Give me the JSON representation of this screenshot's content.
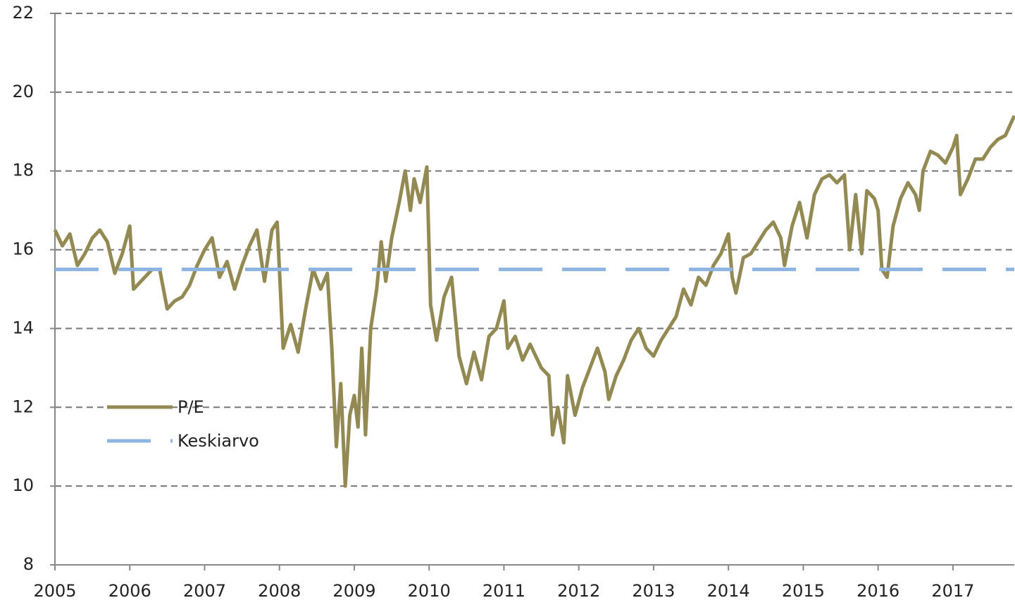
{
  "chart_data": {
    "type": "line",
    "xlim": [
      2005,
      2017.82
    ],
    "xticks": [
      2005,
      2006,
      2007,
      2008,
      2009,
      2010,
      2011,
      2012,
      2013,
      2014,
      2015,
      2016,
      2017
    ],
    "ylim": [
      8,
      22
    ],
    "yticks": [
      8,
      10,
      12,
      14,
      16,
      18,
      20,
      22
    ],
    "grid": true,
    "x": [
      2005.0,
      2005.1,
      2005.2,
      2005.3,
      2005.4,
      2005.5,
      2005.6,
      2005.7,
      2005.8,
      2005.9,
      2006.0,
      2006.05,
      2006.2,
      2006.3,
      2006.4,
      2006.5,
      2006.6,
      2006.7,
      2006.8,
      2006.9,
      2007.0,
      2007.1,
      2007.2,
      2007.3,
      2007.4,
      2007.5,
      2007.6,
      2007.7,
      2007.8,
      2007.9,
      2007.97,
      2008.05,
      2008.15,
      2008.25,
      2008.35,
      2008.45,
      2008.55,
      2008.64,
      2008.7,
      2008.76,
      2008.82,
      2008.88,
      2008.94,
      2009.0,
      2009.05,
      2009.1,
      2009.15,
      2009.22,
      2009.3,
      2009.36,
      2009.42,
      2009.5,
      2009.6,
      2009.68,
      2009.75,
      2009.8,
      2009.88,
      2009.97,
      2010.02,
      2010.1,
      2010.2,
      2010.3,
      2010.4,
      2010.5,
      2010.6,
      2010.7,
      2010.8,
      2010.9,
      2011.0,
      2011.05,
      2011.15,
      2011.25,
      2011.35,
      2011.5,
      2011.6,
      2011.65,
      2011.72,
      2011.8,
      2011.85,
      2011.95,
      2012.05,
      2012.15,
      2012.25,
      2012.35,
      2012.4,
      2012.5,
      2012.6,
      2012.7,
      2012.8,
      2012.9,
      2013.0,
      2013.1,
      2013.2,
      2013.3,
      2013.4,
      2013.5,
      2013.6,
      2013.7,
      2013.8,
      2013.9,
      2014.0,
      2014.05,
      2014.1,
      2014.2,
      2014.3,
      2014.4,
      2014.5,
      2014.6,
      2014.7,
      2014.75,
      2014.85,
      2014.95,
      2015.05,
      2015.15,
      2015.25,
      2015.35,
      2015.45,
      2015.55,
      2015.62,
      2015.7,
      2015.78,
      2015.85,
      2015.95,
      2016.0,
      2016.05,
      2016.12,
      2016.2,
      2016.3,
      2016.4,
      2016.5,
      2016.55,
      2016.6,
      2016.7,
      2016.8,
      2016.9,
      2017.0,
      2017.05,
      2017.1,
      2017.2,
      2017.3,
      2017.4,
      2017.5,
      2017.6,
      2017.7,
      2017.82
    ],
    "series": [
      {
        "name": "P/E",
        "color": "#938953",
        "values": [
          16.5,
          16.1,
          16.4,
          15.6,
          15.9,
          16.3,
          16.5,
          16.2,
          15.4,
          15.9,
          16.6,
          15.0,
          15.3,
          15.5,
          15.5,
          14.5,
          14.7,
          14.8,
          15.1,
          15.6,
          16.0,
          16.3,
          15.3,
          15.7,
          15.0,
          15.6,
          16.1,
          16.5,
          15.2,
          16.5,
          16.7,
          13.5,
          14.1,
          13.4,
          14.5,
          15.5,
          15.0,
          15.4,
          13.5,
          11.0,
          12.6,
          10.0,
          11.8,
          12.3,
          11.5,
          13.5,
          11.3,
          14.0,
          15.0,
          16.2,
          15.2,
          16.3,
          17.2,
          18.0,
          17.0,
          17.8,
          17.2,
          18.1,
          14.6,
          13.7,
          14.8,
          15.3,
          13.3,
          12.6,
          13.4,
          12.7,
          13.8,
          14.0,
          14.7,
          13.5,
          13.8,
          13.2,
          13.6,
          13.0,
          12.8,
          11.3,
          12.0,
          11.1,
          12.8,
          11.8,
          12.5,
          13.0,
          13.5,
          12.9,
          12.2,
          12.8,
          13.2,
          13.7,
          14.0,
          13.5,
          13.3,
          13.7,
          14.0,
          14.3,
          15.0,
          14.6,
          15.3,
          15.1,
          15.6,
          15.9,
          16.4,
          15.3,
          14.9,
          15.8,
          15.9,
          16.2,
          16.5,
          16.7,
          16.3,
          15.6,
          16.6,
          17.2,
          16.3,
          17.4,
          17.8,
          17.9,
          17.7,
          17.9,
          16.0,
          17.4,
          15.9,
          17.5,
          17.3,
          17.0,
          15.5,
          15.3,
          16.6,
          17.3,
          17.7,
          17.4,
          17.0,
          18.0,
          18.5,
          18.4,
          18.2,
          18.6,
          18.9,
          17.4,
          17.8,
          18.3,
          18.3,
          18.6,
          18.8,
          18.9,
          19.4
        ]
      },
      {
        "name": "Keskiarvo",
        "color": "#8db4e2",
        "dashed": true,
        "x": [
          2005,
          2017.82
        ],
        "values": [
          15.5,
          15.5
        ]
      }
    ]
  }
}
